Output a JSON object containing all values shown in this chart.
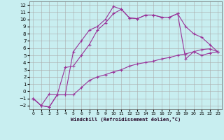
{
  "xlabel": "Windchill (Refroidissement éolien,°C)",
  "background_color": "#c8eef0",
  "grid_color": "#aaaaaa",
  "line_color": "#993399",
  "x_ticks": [
    0,
    1,
    2,
    3,
    4,
    5,
    6,
    7,
    8,
    9,
    10,
    11,
    12,
    13,
    14,
    15,
    16,
    17,
    18,
    19,
    20,
    21,
    22,
    23
  ],
  "y_ticks": [
    -2,
    -1,
    0,
    1,
    2,
    3,
    4,
    5,
    6,
    7,
    8,
    9,
    10,
    11,
    12
  ],
  "ylim": [
    -2.5,
    12.5
  ],
  "xlim": [
    -0.5,
    23.5
  ],
  "series1_y": [
    -1.0,
    -2.0,
    -2.2,
    -0.5,
    -0.5,
    5.5,
    7.0,
    8.5,
    9.0,
    10.0,
    11.8,
    11.4,
    10.2,
    10.1,
    10.6,
    10.6,
    10.3,
    10.3,
    10.8,
    9.0,
    8.0,
    7.5,
    6.5,
    5.5
  ],
  "series2_y": [
    -1.0,
    -2.0,
    -0.4,
    -0.5,
    3.3,
    3.5,
    5.0,
    6.5,
    8.5,
    9.5,
    10.8,
    11.4,
    10.2,
    10.1,
    10.6,
    10.6,
    10.3,
    10.3,
    10.8,
    4.5,
    5.5,
    5.0,
    5.3,
    5.5
  ],
  "series3_y": [
    -1.0,
    -2.0,
    -2.2,
    -0.5,
    -0.5,
    -0.5,
    0.5,
    1.5,
    2.0,
    2.3,
    2.7,
    3.0,
    3.5,
    3.8,
    4.0,
    4.2,
    4.5,
    4.7,
    5.0,
    5.2,
    5.5,
    5.8,
    5.9,
    5.5
  ]
}
